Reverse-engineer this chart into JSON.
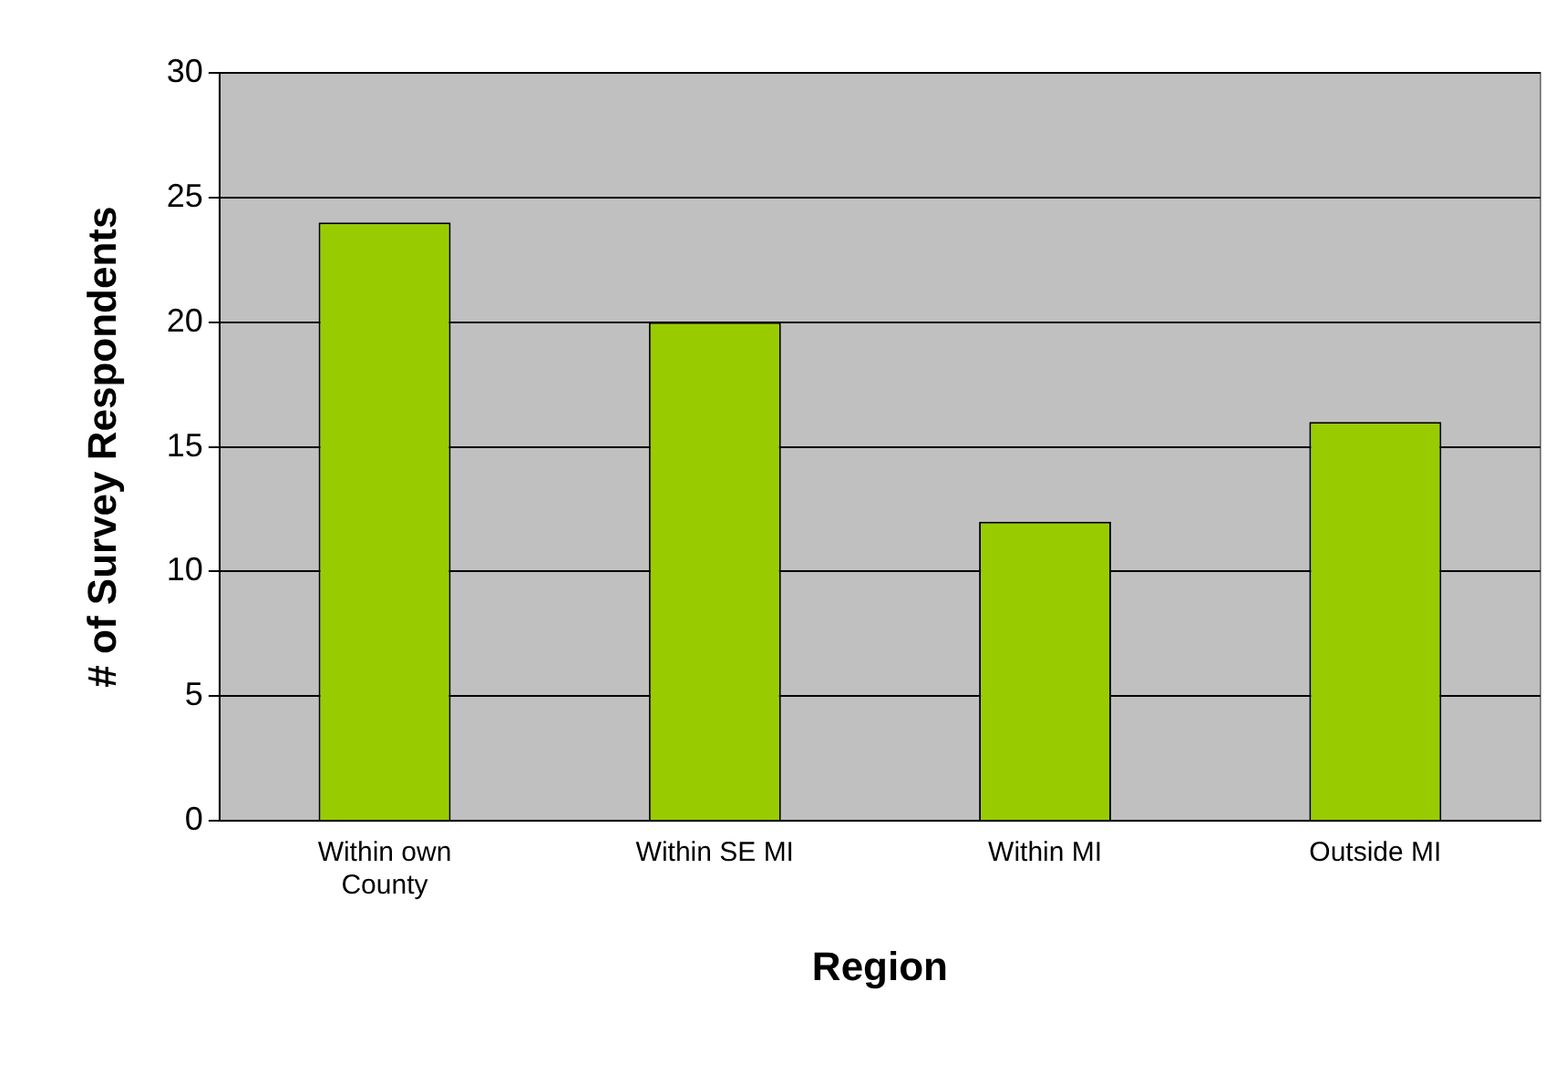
{
  "chart_data": {
    "type": "bar",
    "xlabel": "Region",
    "ylabel": "# of Survey Respondents",
    "categories": [
      "Within own County",
      "Within SE MI",
      "Within MI",
      "Outside MI"
    ],
    "values": [
      24,
      20,
      12,
      16
    ],
    "color": "#99cc00",
    "ylim": [
      0,
      30
    ],
    "yticks": [
      0,
      5,
      10,
      15,
      20,
      25,
      30
    ],
    "grid": "y",
    "legend": false
  }
}
